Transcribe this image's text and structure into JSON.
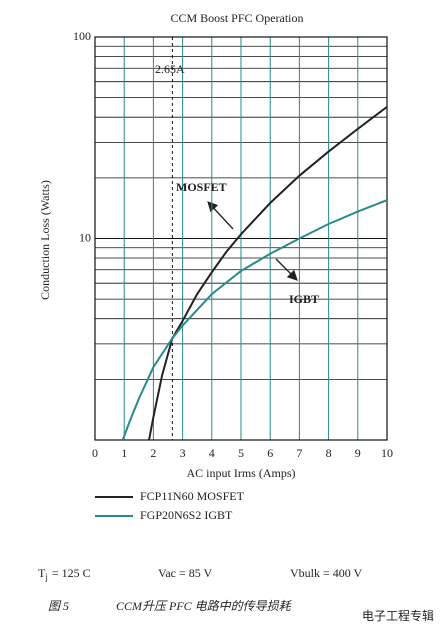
{
  "chart_data": {
    "type": "line",
    "title": "CCM Boost PFC Operation",
    "x_label": "AC input Irms (Amps)",
    "y_label": "Conduction Loss (Watts)",
    "xlim": [
      0,
      10
    ],
    "xticks": [
      0,
      1,
      2,
      3,
      4,
      5,
      6,
      7,
      8,
      9,
      10
    ],
    "ylim": [
      1,
      100
    ],
    "yticks": [
      10,
      100
    ],
    "y_log": true,
    "grid": true,
    "y_minor_ticks": [
      2,
      3,
      4,
      5,
      6,
      7,
      8,
      9,
      20,
      30,
      40,
      50,
      60,
      70,
      80,
      90
    ],
    "grid_color": "#2a8a8a",
    "series": [
      {
        "name": "FCP11N60 MOSFET",
        "color": "#222222",
        "x": [
          1.85,
          2,
          2.3,
          2.65,
          3,
          3.5,
          4,
          4.5,
          5,
          6,
          7,
          8,
          9,
          10
        ],
        "values": [
          1,
          1.3,
          2.1,
          3.2,
          3.9,
          5.3,
          6.8,
          8.6,
          10.5,
          15,
          20.5,
          27,
          35,
          45
        ]
      },
      {
        "name": "FGP20N6S2 IGBT",
        "color": "#2a8a8a",
        "x": [
          0.95,
          1.2,
          1.5,
          2,
          2.65,
          3,
          4,
          5,
          6,
          7,
          8,
          9,
          10
        ],
        "values": [
          1,
          1.25,
          1.6,
          2.3,
          3.2,
          3.7,
          5.3,
          6.9,
          8.4,
          10,
          11.8,
          13.6,
          15.5
        ]
      }
    ],
    "vline_x": 2.65,
    "annotations": [
      "2.65A",
      "MOSFET",
      "IGBT"
    ],
    "conditions": {
      "tj_symbol": "T",
      "tj_subscript": "j",
      "tj_text": "= 125 C",
      "vac": "Vac = 85 V",
      "vbulk": "Vbulk = 400 V"
    },
    "caption": {
      "figure": "图 5",
      "text": "CCM升压 PFC 电路中的传导损耗"
    },
    "watermark": "电子工程专辑"
  }
}
